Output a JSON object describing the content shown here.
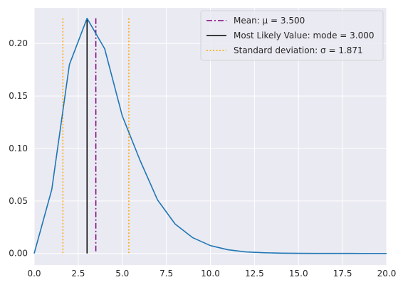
{
  "chart_data": {
    "type": "line",
    "title": "",
    "xlabel": "",
    "ylabel": "",
    "xlim": [
      0,
      20
    ],
    "ylim": [
      -0.011,
      0.234
    ],
    "grid": true,
    "background": "#eaeaf2",
    "x_ticks": [
      0,
      2.5,
      5,
      7.5,
      10,
      12.5,
      15,
      17.5,
      20
    ],
    "x_tick_labels": [
      "0.0",
      "2.5",
      "5.0",
      "7.5",
      "10.0",
      "12.5",
      "15.0",
      "17.5",
      "20.0"
    ],
    "y_ticks": [
      0,
      0.05,
      0.1,
      0.15,
      0.2
    ],
    "y_tick_labels": [
      "0.00",
      "0.05",
      "0.10",
      "0.15",
      "0.20"
    ],
    "series": [
      {
        "color": "#1f77b4",
        "x": [
          0,
          1,
          2,
          3,
          4,
          5,
          6,
          7,
          8,
          9,
          10,
          11,
          12,
          13,
          14,
          15,
          16,
          17,
          18,
          19,
          20
        ],
        "y": [
          0.0,
          0.061,
          0.18,
          0.224,
          0.195,
          0.131,
          0.089,
          0.051,
          0.028,
          0.015,
          0.0075,
          0.0035,
          0.0015,
          0.0007,
          0.0003,
          0.0001,
          5e-05,
          2e-05,
          1e-05,
          0.0,
          0.0
        ]
      }
    ],
    "vlines": [
      {
        "name": "mean",
        "x": 3.5,
        "color": "#800080",
        "style": "dashdot",
        "width": 1.5
      },
      {
        "name": "mode",
        "x": 3.0,
        "color": "#000000",
        "style": "solid",
        "width": 1.5
      },
      {
        "name": "std-low",
        "x": 1.629,
        "color": "#ffa500",
        "style": "dotted",
        "width": 1.5
      },
      {
        "name": "std-high",
        "x": 5.371,
        "color": "#ffa500",
        "style": "dotted",
        "width": 1.5
      }
    ],
    "legend": {
      "placement": "upper-right",
      "entries": [
        {
          "label": "Mean: μ = 3.500",
          "color": "#800080",
          "style": "dashdot"
        },
        {
          "label": "Most Likely Value: mode = 3.000",
          "color": "#000000",
          "style": "solid"
        },
        {
          "label": "Standard deviation: σ = 1.871",
          "color": "#ffa500",
          "style": "dotted"
        }
      ]
    }
  }
}
